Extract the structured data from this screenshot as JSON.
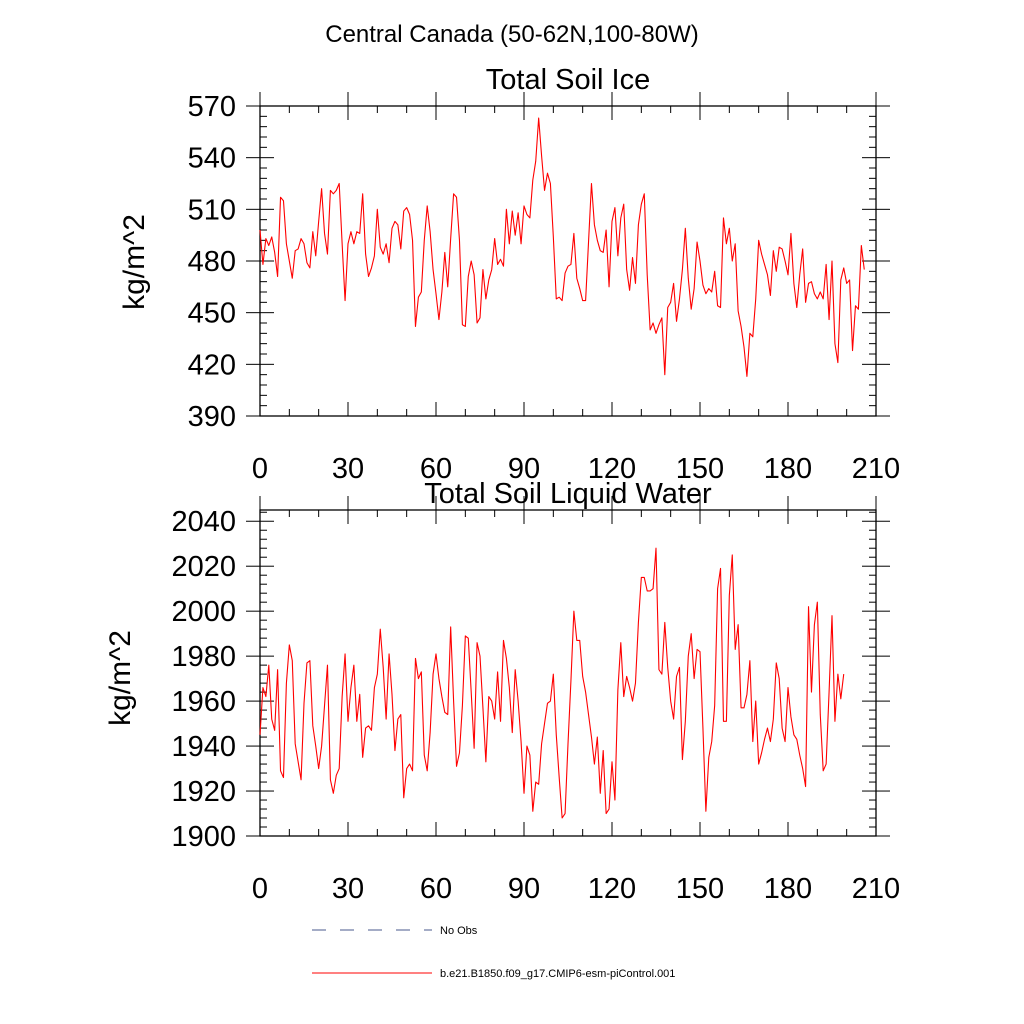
{
  "figure": {
    "title": "Central Canada (50-62N,100-80W)",
    "line_color": "#ff0000",
    "no_obs_color": "#4a5a8c"
  },
  "legend": {
    "no_obs_label": "No Obs",
    "model_label": "b.e21.B1850.f09_g17.CMIP6-esm-piControl.001"
  },
  "chart_data": [
    {
      "type": "line",
      "title": "Total Soil Ice",
      "xlabel": "",
      "ylabel": "kg/m^2",
      "xlim": [
        0,
        210
      ],
      "ylim": [
        390,
        570
      ],
      "xticks": [
        0,
        30,
        60,
        90,
        120,
        150,
        180,
        210
      ],
      "yticks": [
        390,
        420,
        450,
        480,
        510,
        540,
        570
      ],
      "series": [
        {
          "name": "b.e21.B1850.f09_g17.CMIP6-esm-piControl.001",
          "values": [
            498,
            478,
            493,
            489,
            494,
            485,
            471,
            517,
            515,
            490,
            480,
            470,
            486,
            487,
            493,
            490,
            479,
            476,
            497,
            483,
            503,
            522,
            496,
            484,
            521,
            519,
            521,
            525,
            490,
            457,
            490,
            497,
            490,
            497,
            496,
            519,
            484,
            471,
            476,
            483,
            510,
            488,
            484,
            490,
            479,
            499,
            503,
            501,
            487,
            509,
            511,
            507,
            492,
            442,
            459,
            462,
            492,
            512,
            497,
            475,
            461,
            446,
            462,
            485,
            465,
            493,
            519,
            517,
            492,
            443,
            442,
            471,
            480,
            472,
            444,
            447,
            475,
            458,
            469,
            475,
            493,
            478,
            481,
            477,
            510,
            490,
            509,
            495,
            508,
            490,
            512,
            507,
            505,
            527,
            538,
            563,
            541,
            521,
            531,
            525,
            494,
            458,
            459,
            457,
            473,
            477,
            478,
            496,
            470,
            464,
            457,
            457,
            491,
            525,
            501,
            492,
            486,
            485,
            498,
            465,
            503,
            511,
            483,
            505,
            513,
            475,
            463,
            482,
            467,
            501,
            513,
            519,
            472,
            440,
            444,
            438,
            443,
            447,
            414,
            453,
            456,
            467,
            445,
            458,
            475,
            499,
            470,
            452,
            464,
            491,
            480,
            466,
            461,
            464,
            462,
            474,
            454,
            453,
            505,
            490,
            499,
            480,
            490,
            451,
            442,
            430,
            413,
            438,
            436,
            458,
            492,
            484,
            478,
            472,
            460,
            486,
            474,
            488,
            487,
            480,
            472,
            496,
            467,
            453,
            472,
            487,
            456,
            467,
            468,
            461,
            458,
            462,
            458,
            478,
            446,
            480,
            432,
            421,
            469,
            476,
            467,
            469,
            428,
            454,
            452,
            489,
            475
          ]
        }
      ]
    },
    {
      "type": "line",
      "title": "Total Soil Liquid Water",
      "xlabel": "",
      "ylabel": "kg/m^2",
      "xlim": [
        0,
        210
      ],
      "ylim": [
        1900,
        2045
      ],
      "xticks": [
        0,
        30,
        60,
        90,
        120,
        150,
        180,
        210
      ],
      "yticks": [
        1900,
        1920,
        1940,
        1960,
        1980,
        2000,
        2020,
        2040
      ],
      "series": [
        {
          "name": "b.e21.B1850.f09_g17.CMIP6-esm-piControl.001",
          "values": [
            1945,
            1966,
            1962,
            1976,
            1952,
            1947,
            1974,
            1929,
            1926,
            1968,
            1985,
            1978,
            1941,
            1933,
            1925,
            1959,
            1977,
            1978,
            1949,
            1940,
            1930,
            1940,
            1958,
            1976,
            1925,
            1919,
            1927,
            1930,
            1962,
            1981,
            1951,
            1966,
            1976,
            1951,
            1963,
            1935,
            1948,
            1949,
            1947,
            1966,
            1972,
            1992,
            1975,
            1952,
            1981,
            1963,
            1938,
            1952,
            1954,
            1917,
            1930,
            1932,
            1929,
            1979,
            1970,
            1973,
            1936,
            1929,
            1946,
            1972,
            1981,
            1970,
            1962,
            1955,
            1954,
            1993,
            1960,
            1931,
            1937,
            1958,
            1989,
            1988,
            1964,
            1939,
            1986,
            1980,
            1957,
            1933,
            1962,
            1960,
            1952,
            1973,
            1951,
            1987,
            1979,
            1966,
            1946,
            1974,
            1960,
            1942,
            1919,
            1940,
            1936,
            1911,
            1924,
            1923,
            1941,
            1950,
            1959,
            1960,
            1972,
            1945,
            1926,
            1908,
            1910,
            1941,
            1969,
            2000,
            1987,
            1987,
            1971,
            1964,
            1954,
            1944,
            1932,
            1944,
            1919,
            1938,
            1910,
            1912,
            1933,
            1916,
            1965,
            1986,
            1962,
            1971,
            1966,
            1960,
            1968,
            1995,
            2015,
            2015,
            2009,
            2009,
            2010,
            2028,
            1974,
            1972,
            1995,
            1975,
            1960,
            1952,
            1971,
            1975,
            1934,
            1951,
            1980,
            1990,
            1970,
            1983,
            1982,
            1948,
            1911,
            1935,
            1942,
            1958,
            2010,
            2019,
            1951,
            1951,
            2007,
            2025,
            1983,
            1994,
            1957,
            1957,
            1963,
            1978,
            1942,
            1960,
            1932,
            1937,
            1943,
            1948,
            1942,
            1952,
            1977,
            1970,
            1948,
            1942,
            1966,
            1953,
            1945,
            1943,
            1936,
            1930,
            1922,
            2002,
            1964,
            1994,
            2004,
            1954,
            1929,
            1932,
            1964,
            1998,
            1951,
            1972,
            1961,
            1972
          ]
        }
      ]
    }
  ]
}
